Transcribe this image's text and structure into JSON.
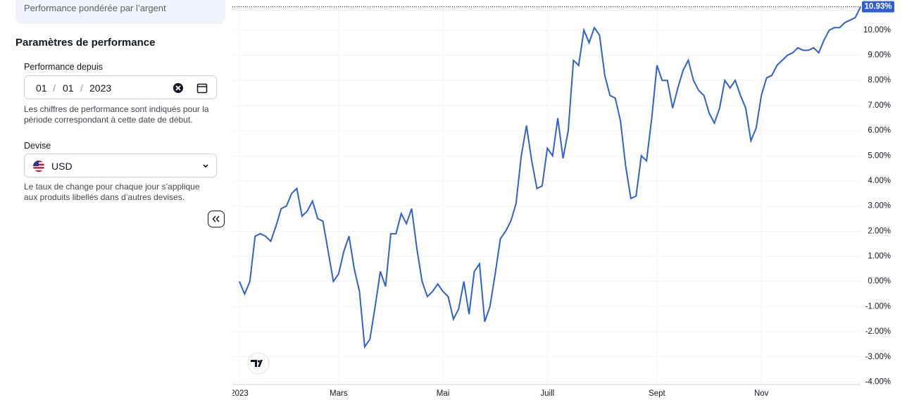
{
  "sidebar": {
    "card_text": "Performance pondérée par l’argent",
    "heading": "Paramètres de performance",
    "since_label": "Performance depuis",
    "date": {
      "day": "01",
      "month": "01",
      "year": "2023",
      "separator": "/"
    },
    "since_help": [
      "Les chiffres de performance sont indiqués pour la",
      "période correspondant à cette date de début."
    ],
    "currency_label": "Devise",
    "currency": "USD",
    "currency_help": [
      "Le taux de change pour chaque jour s’applique",
      "aux produits libellés dans d’autres devises."
    ]
  },
  "chart_data": {
    "type": "line",
    "categories": [
      "2023",
      null,
      null,
      null,
      null,
      null,
      null,
      null,
      null,
      null,
      null,
      null,
      null,
      null,
      null,
      null,
      null,
      null,
      null,
      "Mars",
      null,
      null,
      null,
      null,
      null,
      null,
      null,
      null,
      null,
      null,
      null,
      null,
      null,
      null,
      null,
      null,
      null,
      null,
      null,
      "Mai",
      null,
      null,
      null,
      null,
      null,
      null,
      null,
      null,
      null,
      null,
      null,
      null,
      null,
      null,
      null,
      null,
      null,
      null,
      null,
      "Juill",
      null,
      null,
      null,
      null,
      null,
      null,
      null,
      null,
      null,
      null,
      null,
      null,
      null,
      null,
      null,
      null,
      null,
      null,
      null,
      null,
      "Sept",
      null,
      null,
      null,
      null,
      null,
      null,
      null,
      null,
      null,
      null,
      null,
      null,
      null,
      null,
      null,
      null,
      null,
      null,
      null,
      "Nov",
      null,
      null,
      null,
      null,
      null,
      null,
      null,
      null,
      null,
      null,
      null,
      null,
      null,
      null,
      null,
      null,
      null,
      null,
      null
    ],
    "series": [
      {
        "name": null,
        "color": "#2f5fd0",
        "values": [
          0.0,
          -0.5,
          0.0,
          1.8,
          1.9,
          1.8,
          1.6,
          2.2,
          2.9,
          3.0,
          3.5,
          3.7,
          2.6,
          2.8,
          3.2,
          2.5,
          2.4,
          1.2,
          0.0,
          0.3,
          1.2,
          1.8,
          0.5,
          -0.4,
          -2.6,
          -2.3,
          -1.0,
          0.4,
          -0.2,
          1.9,
          1.9,
          2.7,
          2.3,
          2.9,
          1.3,
          0.0,
          -0.6,
          -0.4,
          -0.1,
          -0.4,
          -0.6,
          -1.5,
          -1.1,
          0.0,
          -1.3,
          0.4,
          0.7,
          -1.6,
          -1.0,
          0.3,
          1.7,
          2.0,
          2.4,
          3.1,
          5.0,
          6.2,
          4.8,
          3.7,
          3.8,
          5.3,
          5.0,
          6.5,
          4.9,
          6.0,
          8.8,
          8.6,
          10.0,
          9.5,
          10.1,
          9.8,
          8.2,
          7.4,
          7.3,
          6.4,
          4.6,
          3.3,
          3.4,
          5.0,
          4.8,
          6.5,
          8.6,
          8.0,
          8.0,
          6.9,
          7.7,
          8.4,
          8.8,
          8.0,
          7.6,
          7.4,
          6.7,
          6.3,
          6.9,
          8.0,
          7.7,
          8.0,
          7.4,
          6.9,
          5.6,
          6.1,
          7.4,
          8.1,
          8.2,
          8.6,
          8.8,
          9.0,
          9.1,
          9.3,
          9.2,
          9.2,
          9.3,
          9.1,
          9.6,
          10.0,
          10.1,
          10.1,
          10.3,
          10.4,
          10.5,
          10.93
        ]
      }
    ],
    "last_value_label": "10.93%",
    "ylim": [
      -4.1,
      11.2
    ],
    "yticks": [
      {
        "value": 10,
        "label": "10.00%"
      },
      {
        "value": 9,
        "label": "9.00%"
      },
      {
        "value": 8,
        "label": "8.00%"
      },
      {
        "value": 7,
        "label": "7.00%"
      },
      {
        "value": 6,
        "label": "6.00%"
      },
      {
        "value": 5,
        "label": "5.00%"
      },
      {
        "value": 4,
        "label": "4.00%"
      },
      {
        "value": 3,
        "label": "3.00%"
      },
      {
        "value": 2,
        "label": "2.00%"
      },
      {
        "value": 1,
        "label": "1.00%"
      },
      {
        "value": 0,
        "label": "0.00%"
      },
      {
        "value": -1,
        "label": "-1.00%"
      },
      {
        "value": -2,
        "label": "-2.00%"
      },
      {
        "value": -3,
        "label": "-3.00%"
      },
      {
        "value": -4,
        "label": "-4.00%"
      }
    ],
    "grid": true
  }
}
